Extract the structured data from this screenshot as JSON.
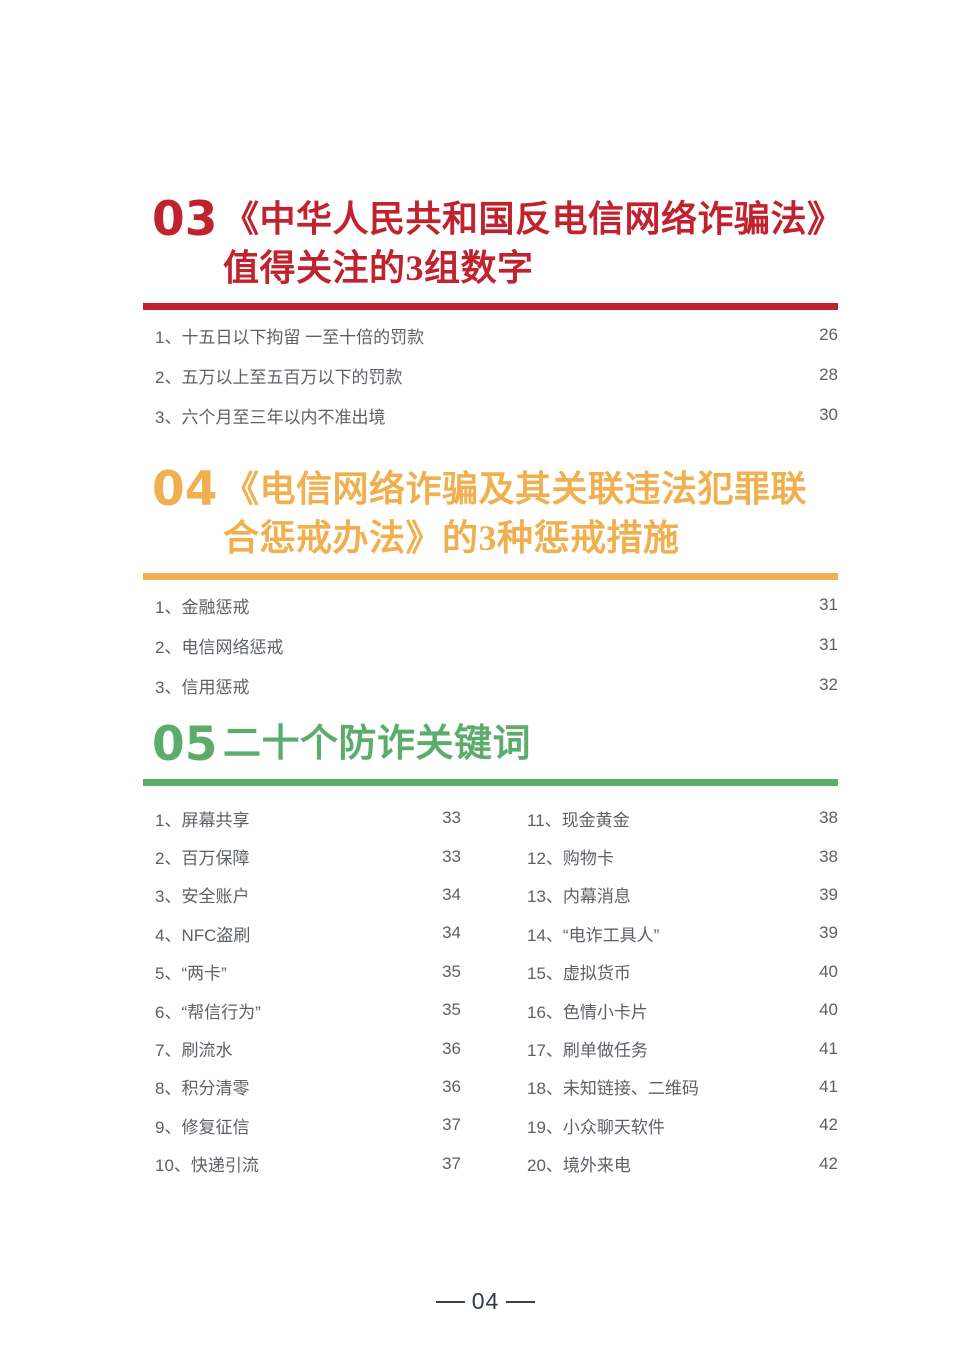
{
  "sections": {
    "s03": {
      "number": "03",
      "title_line1": "《中华人民共和国反电信网络诈骗法》",
      "title_line2": "值得关注的3组数字",
      "accent_color": "#C0222E",
      "items": [
        {
          "label": "1、十五日以下拘留 一至十倍的罚款",
          "page": "26"
        },
        {
          "label": "2、五万以上至五百万以下的罚款",
          "page": "28"
        },
        {
          "label": "3、六个月至三年以内不准出境",
          "page": "30"
        }
      ]
    },
    "s04": {
      "number": "04",
      "title_line1": "《电信网络诈骗及其关联违法犯罪联",
      "title_line2": "合惩戒办法》的3种惩戒措施",
      "accent_color": "#F0B04F",
      "items": [
        {
          "label": "1、金融惩戒",
          "page": "31"
        },
        {
          "label": "2、电信网络惩戒",
          "page": "31"
        },
        {
          "label": "3、信用惩戒",
          "page": "32"
        }
      ]
    },
    "s05": {
      "number": "05",
      "title": "二十个防诈关键词",
      "accent_color": "#5CAD6B",
      "left_items": [
        {
          "label": "1、屏幕共享",
          "page": "33"
        },
        {
          "label": "2、百万保障",
          "page": "33"
        },
        {
          "label": "3、安全账户",
          "page": "34"
        },
        {
          "label": "4、NFC盗刷",
          "page": "34"
        },
        {
          "label": "5、“两卡”",
          "page": "35"
        },
        {
          "label": "6、“帮信行为”",
          "page": "35"
        },
        {
          "label": "7、刷流水",
          "page": "36"
        },
        {
          "label": "8、积分清零",
          "page": "36"
        },
        {
          "label": "9、修复征信",
          "page": "37"
        },
        {
          "label": "10、快递引流",
          "page": "37"
        }
      ],
      "right_items": [
        {
          "label": "11、现金黄金",
          "page": "38"
        },
        {
          "label": "12、购物卡",
          "page": "38"
        },
        {
          "label": "13、内幕消息",
          "page": "39"
        },
        {
          "label": "14、“电诈工具人”",
          "page": "39"
        },
        {
          "label": "15、虚拟货币",
          "page": "40"
        },
        {
          "label": "16、色情小卡片",
          "page": "40"
        },
        {
          "label": "17、刷单做任务",
          "page": "41"
        },
        {
          "label": "18、未知链接、二维码",
          "page": "41"
        },
        {
          "label": "19、小众聊天软件",
          "page": "42"
        },
        {
          "label": "20、境外来电",
          "page": "42"
        }
      ]
    }
  },
  "footer": {
    "page_number": "04"
  },
  "colors": {
    "section03_red": "#C0222E",
    "section04_yellow": "#F0B04F",
    "section05_green": "#5CAD6B",
    "body_text_gray": "#5D6166",
    "footer_text": "#2F3A48",
    "background": "#FFFFFF"
  }
}
